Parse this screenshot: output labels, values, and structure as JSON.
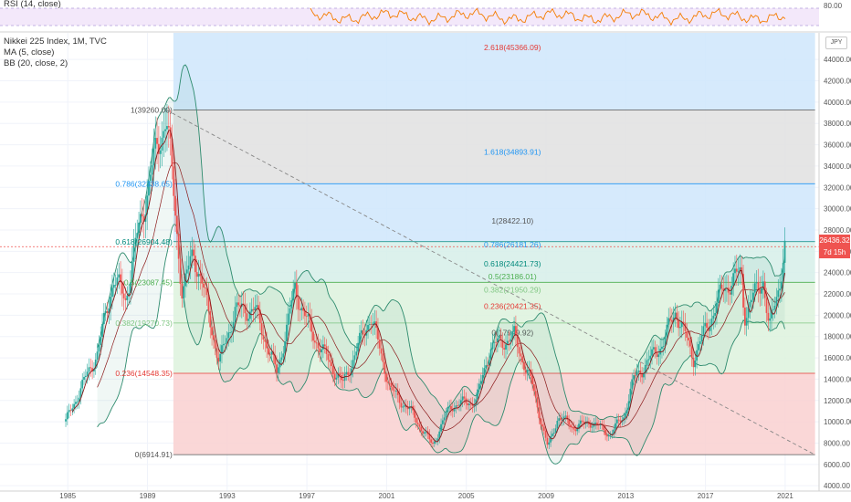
{
  "rsi_panel": {
    "label": "RSI (14, close)",
    "level_label": "80.00"
  },
  "main_legend": {
    "symbol_line": "Nikkei 225 Index, 1M, TVC",
    "ma_line": "MA (5, close)",
    "bb_line": "BB (20, close, 2)"
  },
  "currency_label": "JPY",
  "price_tag": {
    "price": "26436.32",
    "countdown": "7d 15h",
    "color": "#ef5350"
  },
  "colors": {
    "up_candle": "#26a69a",
    "down_candle": "#ef5350",
    "bb_band": "#2e8b6e",
    "ma_line": "#8b1a1a",
    "rsi_line": "#f57c00",
    "rsi_band": "#e1bee7",
    "fib_blue_zone": "#cfe6fb",
    "fib_gray_zone": "#e0e0e0",
    "fib_green_zone": "#ddf2dd",
    "fib_red_zone": "#f9d0d0"
  },
  "chart_data": {
    "type": "candlestick",
    "title": "Nikkei 225 Index, 1M, TVC",
    "y_axis": {
      "ticks": [
        "4000.00",
        "6000.00",
        "8000.00",
        "10000.00",
        "12000.00",
        "14000.00",
        "16000.00",
        "18000.00",
        "20000.00",
        "22000.00",
        "24000.00",
        "26000.00",
        "28000.00",
        "30000.00",
        "32000.00",
        "34000.00",
        "36000.00",
        "38000.00",
        "40000.00",
        "42000.00",
        "44000.00"
      ],
      "range": [
        3500,
        46500
      ]
    },
    "x_axis": {
      "ticks": [
        "1985",
        "1989",
        "1993",
        "1997",
        "2001",
        "2005",
        "2009",
        "2013",
        "2017",
        "2021"
      ],
      "range": [
        1981.6,
        2022.7
      ]
    },
    "close_series": [
      {
        "x": 1984.9,
        "y": 10000
      },
      {
        "x": 1985.5,
        "y": 12500
      },
      {
        "x": 1986.5,
        "y": 16500
      },
      {
        "x": 1987.3,
        "y": 23500
      },
      {
        "x": 1987.9,
        "y": 21500
      },
      {
        "x": 1988.5,
        "y": 27500
      },
      {
        "x": 1989.2,
        "y": 33500
      },
      {
        "x": 1989.95,
        "y": 38900
      },
      {
        "x": 1990.4,
        "y": 29500
      },
      {
        "x": 1990.75,
        "y": 22000
      },
      {
        "x": 1991.3,
        "y": 26000
      },
      {
        "x": 1991.8,
        "y": 22500
      },
      {
        "x": 1992.6,
        "y": 15500
      },
      {
        "x": 1993.4,
        "y": 20500
      },
      {
        "x": 1994.4,
        "y": 20500
      },
      {
        "x": 1995.5,
        "y": 14500
      },
      {
        "x": 1996.4,
        "y": 22500
      },
      {
        "x": 1997.2,
        "y": 18500
      },
      {
        "x": 1998.8,
        "y": 13500
      },
      {
        "x": 2000.2,
        "y": 20000
      },
      {
        "x": 2001.2,
        "y": 13000
      },
      {
        "x": 2002.2,
        "y": 11000
      },
      {
        "x": 2003.3,
        "y": 7800
      },
      {
        "x": 2004.2,
        "y": 11500
      },
      {
        "x": 2005.5,
        "y": 12000
      },
      {
        "x": 2006.2,
        "y": 17000
      },
      {
        "x": 2007.4,
        "y": 18000
      },
      {
        "x": 2008.3,
        "y": 13500
      },
      {
        "x": 2009.1,
        "y": 7500
      },
      {
        "x": 2009.6,
        "y": 10500
      },
      {
        "x": 2010.4,
        "y": 9500
      },
      {
        "x": 2011.3,
        "y": 10000
      },
      {
        "x": 2012.2,
        "y": 8800
      },
      {
        "x": 2012.9,
        "y": 10500
      },
      {
        "x": 2013.4,
        "y": 14000
      },
      {
        "x": 2014.9,
        "y": 17500
      },
      {
        "x": 2015.5,
        "y": 20500
      },
      {
        "x": 2016.4,
        "y": 16000
      },
      {
        "x": 2017.9,
        "y": 22500
      },
      {
        "x": 2018.8,
        "y": 24000
      },
      {
        "x": 2018.95,
        "y": 20000
      },
      {
        "x": 2019.9,
        "y": 23500
      },
      {
        "x": 2020.2,
        "y": 18500
      },
      {
        "x": 2020.7,
        "y": 23000
      },
      {
        "x": 2021.0,
        "y": 26436
      }
    ],
    "fib_retracement_left": {
      "levels": [
        {
          "label": "1(39260.00)",
          "value": 39260,
          "color": "#555555"
        },
        {
          "label": "0.786(32338.65)",
          "value": 32338.65,
          "color": "#2196f3"
        },
        {
          "label": "0.618(26904.48)",
          "value": 26904.48,
          "color": "#00897b"
        },
        {
          "label": "0.5(23087.45)",
          "value": 23087.45,
          "color": "#4caf50"
        },
        {
          "label": "0.382(19270.73)",
          "value": 19270.73,
          "color": "#81c784"
        },
        {
          "label": "0.236(14548.35)",
          "value": 14548.35,
          "color": "#e53935"
        },
        {
          "label": "0(6914.91)",
          "value": 6914.91,
          "color": "#555555"
        }
      ]
    },
    "fib_extension_right": {
      "levels": [
        {
          "label": "2.618(45366.09)",
          "value": 45366.09,
          "color": "#e53935"
        },
        {
          "label": "1.618(34893.91)",
          "value": 34893.91,
          "color": "#2196f3"
        },
        {
          "label": "1(28422.10)",
          "value": 28422.1,
          "color": "#555555"
        },
        {
          "label": "0.786(26181.26)",
          "value": 26181.26,
          "color": "#2196f3"
        },
        {
          "label": "0.618(24421.73)",
          "value": 24421.73,
          "color": "#00897b"
        },
        {
          "label": "0.5(23186.01)",
          "value": 23186.01,
          "color": "#4caf50"
        },
        {
          "label": "0.382(21950.29)",
          "value": 21950.29,
          "color": "#81c784"
        },
        {
          "label": "0.236(20421.35)",
          "value": 20421.35,
          "color": "#e53935"
        },
        {
          "label": "0(17949.92)",
          "value": 17949.92,
          "color": "#555555"
        }
      ]
    },
    "trend_line": {
      "from": {
        "x": 1989.95,
        "y": 39260
      },
      "to": {
        "x": 2022.5,
        "y": 6900
      }
    },
    "current_price": 26436.32,
    "grid": true
  }
}
